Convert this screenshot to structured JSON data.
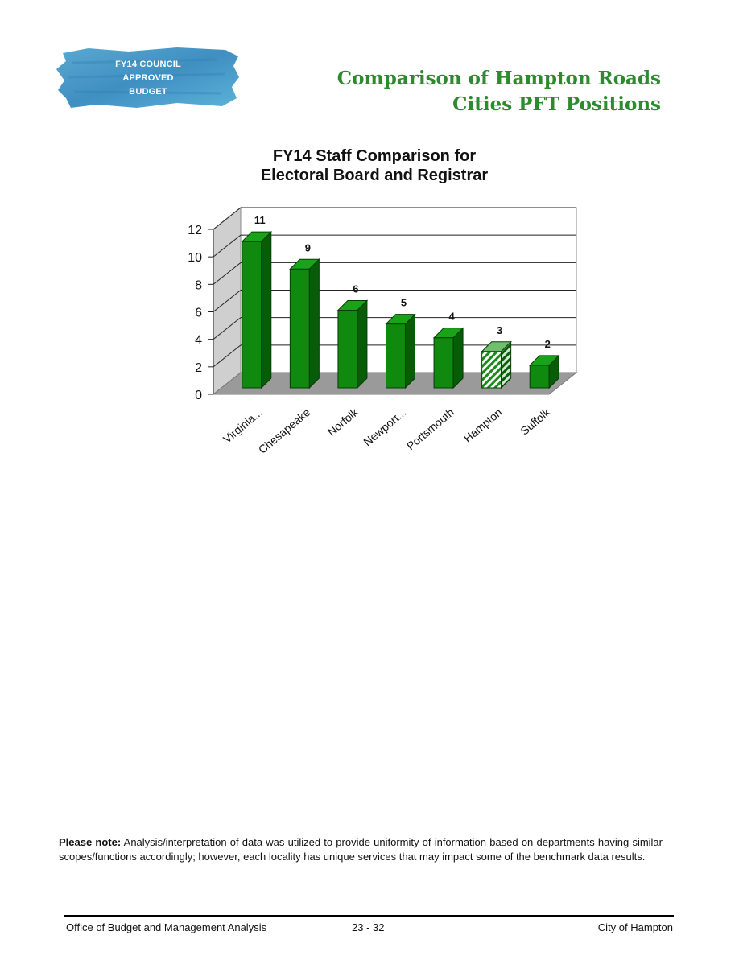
{
  "badge": {
    "lines": [
      "FY14 COUNCIL",
      "APPROVED",
      "BUDGET"
    ]
  },
  "heading": {
    "line1": "Comparison of Hampton Roads",
    "line2": "Cities PFT Positions"
  },
  "chart_data": {
    "type": "bar",
    "title_lines": [
      "FY14  Staff Comparison for",
      "Electoral Board and Registrar"
    ],
    "categories": [
      "Virginia...",
      "Chesapeake",
      "Norfolk",
      "Newport...",
      "Portsmouth",
      "Hampton",
      "Suffolk"
    ],
    "values": [
      11,
      9,
      6,
      5,
      4,
      3,
      2
    ],
    "data_labels": [
      "11",
      "9",
      "6",
      "5",
      "4",
      "3",
      "2"
    ],
    "highlight_category": "Hampton",
    "ylim": [
      0,
      12
    ],
    "yticks": [
      0,
      2,
      4,
      6,
      8,
      10,
      12
    ],
    "grid": true,
    "xlabel": "",
    "ylabel": "",
    "colors": {
      "bar": "#0f8a0f",
      "bar_side": "#075c07",
      "bar_top": "#18a318",
      "floor": "#9a9a9a",
      "wall": "#e4e4e4"
    }
  },
  "note": {
    "label": "Please note:",
    "text": "Analysis/interpretation of data was utilized to provide uniformity of information based on departments having similar scopes/functions accordingly; however, each locality has unique services that may impact some of the benchmark data results."
  },
  "footer": {
    "left": "Office of Budget and Management Analysis",
    "center": "23 - 32",
    "right": "City of Hampton"
  }
}
